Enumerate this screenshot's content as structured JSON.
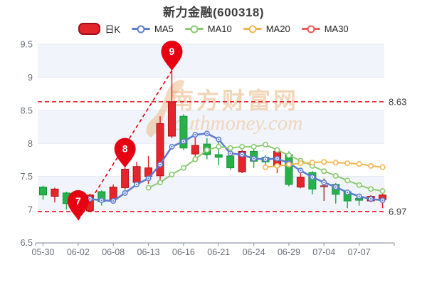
{
  "title": "新力金融(600318)",
  "legend": {
    "items": [
      {
        "label": "日K",
        "color": "#e2262b",
        "type": "candle"
      },
      {
        "label": "MA5",
        "color": "#5f7ed0",
        "type": "line"
      },
      {
        "label": "MA10",
        "color": "#8cc972",
        "type": "line"
      },
      {
        "label": "MA20",
        "color": "#f3b64f",
        "type": "line"
      },
      {
        "label": "MA30",
        "color": "#ed5a5a",
        "type": "line"
      }
    ]
  },
  "watermark": {
    "line1": "南方财富网",
    "line2": "outhmoney.com"
  },
  "chart_data": {
    "type": "candlestick",
    "symbol": "新力金融(600318)",
    "ylim": [
      6.5,
      9.5
    ],
    "y_ticks": [
      9.5,
      9.0,
      8.5,
      8.0,
      7.5,
      7.0,
      6.5
    ],
    "x_tick_indices": [
      0,
      3,
      6,
      9,
      12,
      15,
      18,
      21,
      24,
      27
    ],
    "grid": "horizontal-bands",
    "legend_position": "top",
    "candles": [
      {
        "date": "05-30",
        "open": 7.34,
        "high": 7.36,
        "low": 7.15,
        "close": 7.22
      },
      {
        "date": "05-31",
        "open": 7.2,
        "high": 7.33,
        "low": 7.11,
        "close": 7.31
      },
      {
        "date": "06-01",
        "open": 7.25,
        "high": 7.27,
        "low": 7.0,
        "close": 7.09
      },
      {
        "date": "06-02",
        "open": 7.08,
        "high": 7.1,
        "low": 6.84,
        "close": 6.97
      },
      {
        "date": "06-06",
        "open": 6.98,
        "high": 7.24,
        "low": 6.96,
        "close": 7.22
      },
      {
        "date": "06-07",
        "open": 7.27,
        "high": 7.29,
        "low": 7.06,
        "close": 7.12
      },
      {
        "date": "06-08",
        "open": 7.15,
        "high": 7.38,
        "low": 7.09,
        "close": 7.34
      },
      {
        "date": "06-09",
        "open": 7.33,
        "high": 7.63,
        "low": 7.3,
        "close": 7.61
      },
      {
        "date": "06-10",
        "open": 7.41,
        "high": 7.72,
        "low": 7.36,
        "close": 7.65
      },
      {
        "date": "06-13",
        "open": 7.5,
        "high": 7.81,
        "low": 7.39,
        "close": 7.63
      },
      {
        "date": "06-14",
        "open": 7.51,
        "high": 8.41,
        "low": 7.45,
        "close": 8.3
      },
      {
        "date": "06-15",
        "open": 8.11,
        "high": 9.1,
        "low": 8.08,
        "close": 8.63
      },
      {
        "date": "06-16",
        "open": 8.41,
        "high": 8.44,
        "low": 7.9,
        "close": 7.93
      },
      {
        "date": "06-17",
        "open": 7.84,
        "high": 8.11,
        "low": 7.77,
        "close": 7.97
      },
      {
        "date": "06-20",
        "open": 7.99,
        "high": 8.08,
        "low": 7.76,
        "close": 7.83
      },
      {
        "date": "06-21",
        "open": 7.83,
        "high": 8.06,
        "low": 7.67,
        "close": 7.79
      },
      {
        "date": "06-22",
        "open": 7.81,
        "high": 7.9,
        "low": 7.6,
        "close": 7.63
      },
      {
        "date": "06-23",
        "open": 7.57,
        "high": 7.9,
        "low": 7.55,
        "close": 7.88
      },
      {
        "date": "06-24",
        "open": 7.88,
        "high": 7.95,
        "low": 7.63,
        "close": 7.73
      },
      {
        "date": "06-27",
        "open": 7.79,
        "high": 7.82,
        "low": 7.68,
        "close": 7.72
      },
      {
        "date": "06-28",
        "open": 7.66,
        "high": 7.9,
        "low": 7.55,
        "close": 7.88
      },
      {
        "date": "06-29",
        "open": 7.83,
        "high": 7.88,
        "low": 7.35,
        "close": 7.38
      },
      {
        "date": "06-30",
        "open": 7.34,
        "high": 7.59,
        "low": 7.32,
        "close": 7.49
      },
      {
        "date": "07-01",
        "open": 7.56,
        "high": 7.58,
        "low": 7.23,
        "close": 7.31
      },
      {
        "date": "07-04",
        "open": 7.36,
        "high": 7.47,
        "low": 7.13,
        "close": 7.36,
        "tint": "dark"
      },
      {
        "date": "07-05",
        "open": 7.38,
        "high": 7.4,
        "low": 7.09,
        "close": 7.23
      },
      {
        "date": "07-06",
        "open": 7.27,
        "high": 7.29,
        "low": 7.02,
        "close": 7.13
      },
      {
        "date": "07-07",
        "open": 7.17,
        "high": 7.22,
        "low": 7.06,
        "close": 7.14
      },
      {
        "date": "07-08",
        "open": 7.13,
        "high": 7.22,
        "low": 7.11,
        "close": 7.2
      },
      {
        "date": "07-11",
        "open": 7.15,
        "high": 7.31,
        "low": 7.02,
        "close": 7.22
      }
    ],
    "series": [
      {
        "name": "MA5",
        "color": "#5f7ed0",
        "start_index": 4,
        "values": [
          7.16,
          7.14,
          7.13,
          7.25,
          7.38,
          7.47,
          7.68,
          7.95,
          8.03,
          8.13,
          8.15,
          8.06,
          7.85,
          7.83,
          7.77,
          7.76,
          7.77,
          7.7,
          7.59,
          7.49,
          7.41,
          7.34,
          7.26,
          7.2,
          7.16,
          7.14
        ]
      },
      {
        "name": "MA10",
        "color": "#8cc972",
        "start_index": 9,
        "values": [
          7.33,
          7.41,
          7.53,
          7.63,
          7.76,
          7.9,
          7.95,
          7.93,
          7.95,
          7.95,
          7.98,
          7.9,
          7.82,
          7.74,
          7.66,
          7.58,
          7.51,
          7.44,
          7.37,
          7.31,
          7.28
        ]
      },
      {
        "name": "MA20",
        "color": "#f3b64f",
        "start_index": 19,
        "values": [
          7.64,
          7.66,
          7.68,
          7.7,
          7.71,
          7.72,
          7.71,
          7.7,
          7.69,
          7.66,
          7.64
        ]
      },
      {
        "name": "MA30",
        "color": "#ed5a5a",
        "start_index": 29,
        "values": []
      }
    ],
    "markers": [
      {
        "label": "7",
        "candle_index": 3,
        "price": 6.84
      },
      {
        "label": "8",
        "candle_index": 7,
        "price": 7.63
      },
      {
        "label": "9",
        "candle_index": 11,
        "price": 9.1
      }
    ],
    "trendline": {
      "from_marker": 0,
      "to_marker": 2
    },
    "reference_lines": [
      {
        "value": 8.63,
        "label": "8.63"
      },
      {
        "value": 6.97,
        "label": "6.97"
      }
    ],
    "colors": {
      "up": "#e2262b",
      "up_border": "#b5121f",
      "down": "#26b24a",
      "down_border": "#14963c",
      "doji_dark": "#a04040",
      "marker": "#e60012",
      "reference": "#e60012",
      "band": "#f1f4fa",
      "gridline": "#e3e8f2",
      "axis": "#9aa0ab",
      "tick_text": "#6a6f78",
      "watermark_text": "#e8ae74",
      "watermark_sub": "#eec294"
    }
  }
}
